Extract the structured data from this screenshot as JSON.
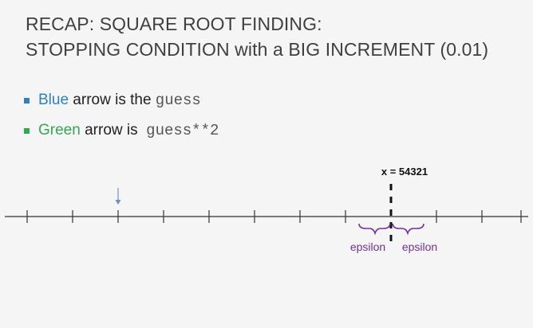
{
  "title": {
    "line1": "RECAP: SQUARE ROOT FINDING:",
    "line2": "STOPPING CONDITION with a BIG INCREMENT (0.01)"
  },
  "bullets": [
    {
      "colored_word": "Blue",
      "text": " arrow is the ",
      "code": "guess",
      "color": "#2f7fc1"
    },
    {
      "colored_word": "Green",
      "text": " arrow is  ",
      "code": "guess**2",
      "color": "#33a852"
    }
  ],
  "diagram": {
    "x_label": "x = 54321",
    "epsilon_left": "epsilon",
    "epsilon_right": "epsilon",
    "colors": {
      "axis": "#333333",
      "arrow": "#6a8fd0",
      "brace": "#7030a0",
      "marker": "#111111"
    }
  }
}
